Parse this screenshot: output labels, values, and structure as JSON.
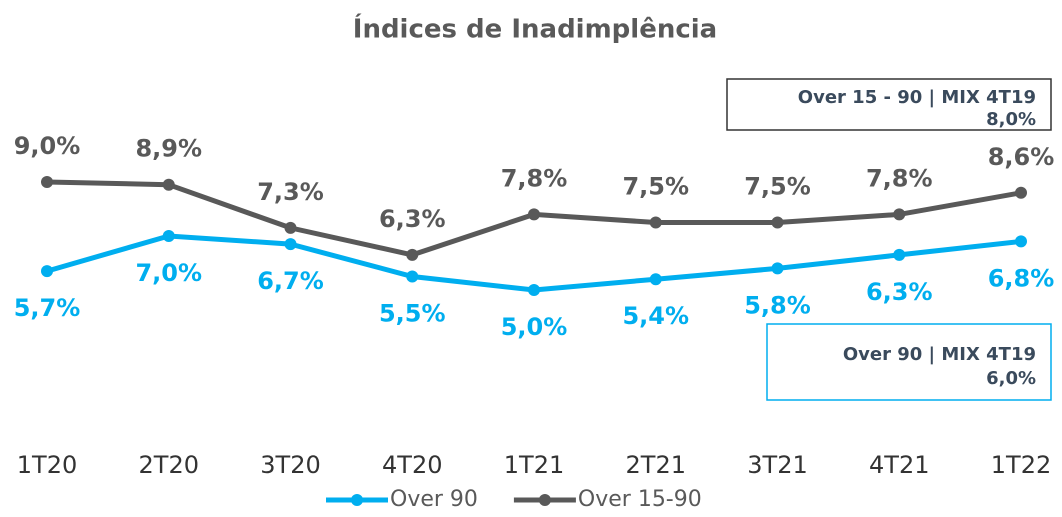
{
  "chart_data": {
    "type": "line",
    "title": "Índices de Inadimplência",
    "categories": [
      "1T20",
      "2T20",
      "3T20",
      "4T20",
      "1T21",
      "2T21",
      "3T21",
      "4T21",
      "1T22"
    ],
    "series": [
      {
        "name": "Over 90",
        "color": "#00aeef",
        "values": [
          5.7,
          7.0,
          6.7,
          5.5,
          5.0,
          5.4,
          5.8,
          6.3,
          6.8
        ],
        "value_labels": [
          "5,7%",
          "7,0%",
          "6,7%",
          "5,5%",
          "5,0%",
          "5,4%",
          "5,8%",
          "6,3%",
          "6,8%"
        ]
      },
      {
        "name": "Over 15-90",
        "color": "#595959",
        "values": [
          9.0,
          8.9,
          7.3,
          6.3,
          7.8,
          7.5,
          7.5,
          7.8,
          8.6
        ],
        "value_labels": [
          "9,0%",
          "8,9%",
          "7,3%",
          "6,3%",
          "7,8%",
          "7,5%",
          "7,5%",
          "7,8%",
          "8,6%"
        ]
      }
    ],
    "ylim": [
      3,
      11
    ],
    "annotations": [
      {
        "title": "Over 15 - 90 | MIX 4T19",
        "value": "8,0%"
      },
      {
        "title": "Over 90 | MIX 4T19",
        "value": "6,0%"
      }
    ]
  }
}
